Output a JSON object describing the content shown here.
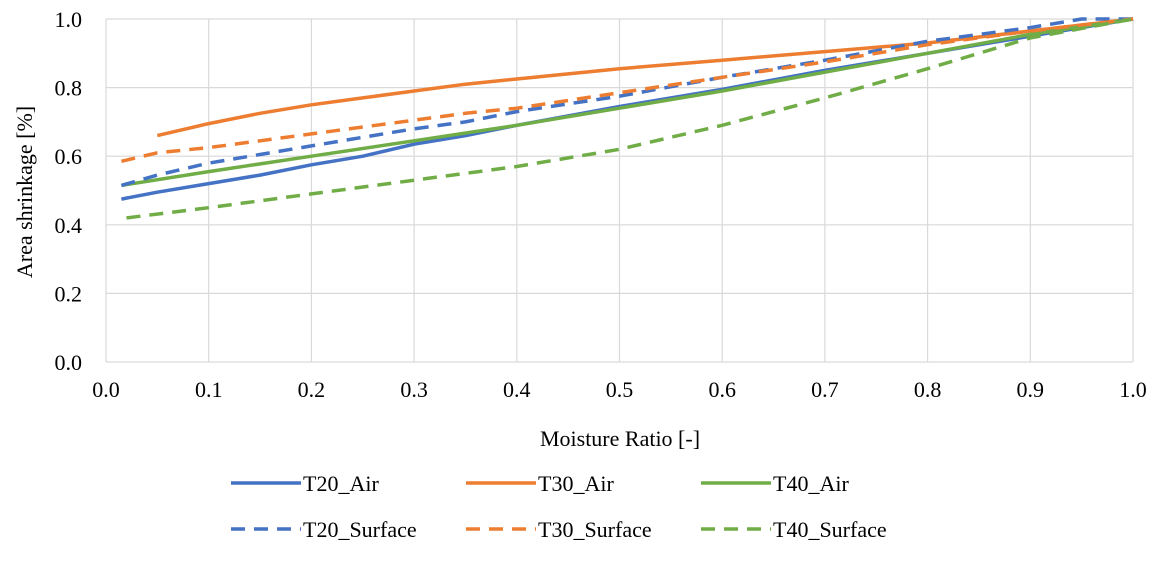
{
  "chart_data": {
    "type": "line",
    "title": "",
    "xlabel": "Moisture Ratio [-]",
    "ylabel": "Area shrinkage [%]",
    "xlim": [
      0.0,
      1.0
    ],
    "ylim": [
      0.0,
      1.0
    ],
    "x_ticks": [
      "0.0",
      "0.1",
      "0.2",
      "0.3",
      "0.4",
      "0.5",
      "0.6",
      "0.7",
      "0.8",
      "0.9",
      "1.0"
    ],
    "y_ticks": [
      "0.0",
      "0.2",
      "0.4",
      "0.6",
      "0.8",
      "1.0"
    ],
    "grid": "vertical and horizontal",
    "legend_position": "bottom",
    "series": [
      {
        "name": "T20_Air",
        "color": "#4472C4",
        "dash": "solid",
        "points": [
          [
            0.015,
            0.475
          ],
          [
            0.05,
            0.495
          ],
          [
            0.1,
            0.52
          ],
          [
            0.15,
            0.545
          ],
          [
            0.2,
            0.575
          ],
          [
            0.25,
            0.6
          ],
          [
            0.3,
            0.635
          ],
          [
            0.35,
            0.66
          ],
          [
            0.4,
            0.69
          ],
          [
            0.5,
            0.745
          ],
          [
            0.6,
            0.795
          ],
          [
            0.7,
            0.85
          ],
          [
            0.8,
            0.9
          ],
          [
            0.9,
            0.95
          ],
          [
            1.0,
            1.0
          ]
        ]
      },
      {
        "name": "T30_Air",
        "color": "#ED7D31",
        "dash": "solid",
        "points": [
          [
            0.05,
            0.66
          ],
          [
            0.1,
            0.695
          ],
          [
            0.15,
            0.725
          ],
          [
            0.2,
            0.75
          ],
          [
            0.25,
            0.77
          ],
          [
            0.3,
            0.79
          ],
          [
            0.35,
            0.81
          ],
          [
            0.4,
            0.825
          ],
          [
            0.5,
            0.855
          ],
          [
            0.6,
            0.88
          ],
          [
            0.7,
            0.905
          ],
          [
            0.8,
            0.93
          ],
          [
            0.9,
            0.965
          ],
          [
            1.0,
            1.0
          ]
        ]
      },
      {
        "name": "T40_Air",
        "color": "#70AD47",
        "dash": "solid",
        "points": [
          [
            0.015,
            0.515
          ],
          [
            0.1,
            0.555
          ],
          [
            0.2,
            0.6
          ],
          [
            0.3,
            0.645
          ],
          [
            0.4,
            0.69
          ],
          [
            0.5,
            0.74
          ],
          [
            0.6,
            0.79
          ],
          [
            0.7,
            0.845
          ],
          [
            0.8,
            0.9
          ],
          [
            0.9,
            0.955
          ],
          [
            1.0,
            1.0
          ]
        ]
      },
      {
        "name": "T20_Surface",
        "color": "#4472C4",
        "dash": "dashed",
        "points": [
          [
            0.015,
            0.515
          ],
          [
            0.05,
            0.545
          ],
          [
            0.1,
            0.58
          ],
          [
            0.15,
            0.605
          ],
          [
            0.2,
            0.63
          ],
          [
            0.25,
            0.655
          ],
          [
            0.3,
            0.68
          ],
          [
            0.35,
            0.7
          ],
          [
            0.4,
            0.73
          ],
          [
            0.5,
            0.775
          ],
          [
            0.6,
            0.83
          ],
          [
            0.7,
            0.88
          ],
          [
            0.8,
            0.935
          ],
          [
            0.9,
            0.975
          ],
          [
            0.95,
            1.0
          ],
          [
            1.0,
            1.0
          ]
        ]
      },
      {
        "name": "T30_Surface",
        "color": "#ED7D31",
        "dash": "dashed",
        "points": [
          [
            0.015,
            0.585
          ],
          [
            0.05,
            0.61
          ],
          [
            0.1,
            0.625
          ],
          [
            0.15,
            0.645
          ],
          [
            0.2,
            0.665
          ],
          [
            0.25,
            0.685
          ],
          [
            0.3,
            0.705
          ],
          [
            0.35,
            0.725
          ],
          [
            0.4,
            0.74
          ],
          [
            0.5,
            0.785
          ],
          [
            0.6,
            0.83
          ],
          [
            0.7,
            0.875
          ],
          [
            0.8,
            0.925
          ],
          [
            0.9,
            0.965
          ],
          [
            1.0,
            1.0
          ]
        ]
      },
      {
        "name": "T40_Surface",
        "color": "#70AD47",
        "dash": "dashed",
        "points": [
          [
            0.02,
            0.42
          ],
          [
            0.1,
            0.45
          ],
          [
            0.2,
            0.49
          ],
          [
            0.3,
            0.53
          ],
          [
            0.4,
            0.57
          ],
          [
            0.5,
            0.62
          ],
          [
            0.6,
            0.69
          ],
          [
            0.7,
            0.77
          ],
          [
            0.8,
            0.855
          ],
          [
            0.9,
            0.945
          ],
          [
            1.0,
            1.0
          ]
        ]
      }
    ]
  }
}
